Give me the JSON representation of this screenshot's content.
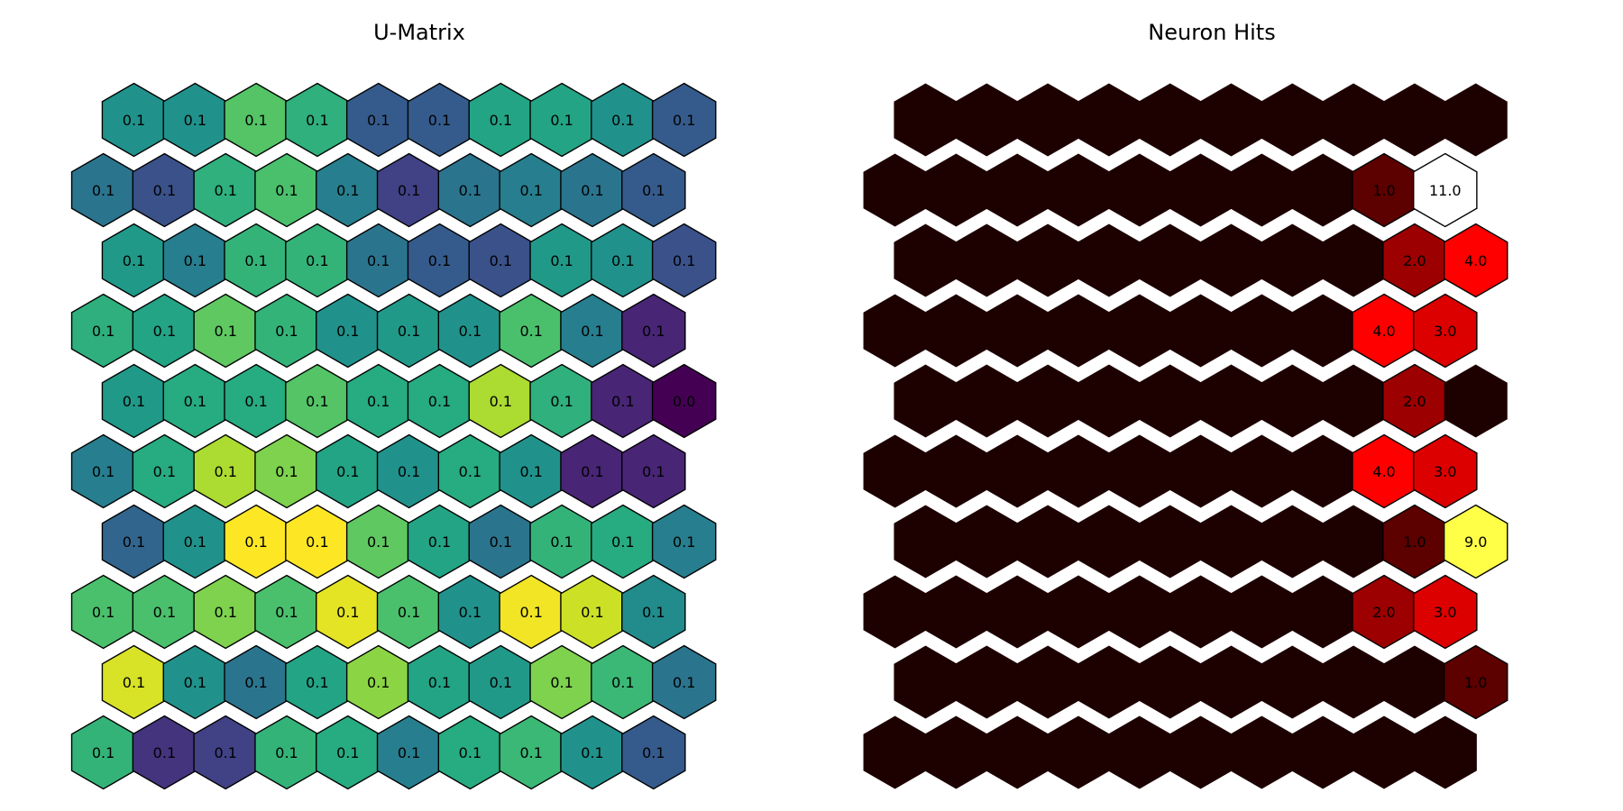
{
  "chart_data": [
    {
      "type": "heatmap",
      "title": "U-Matrix",
      "grid": "hexagonal",
      "rows": 10,
      "cols": 10,
      "colormap": "viridis",
      "values": [
        [
          0.057,
          0.057,
          0.08,
          0.0705,
          0.034,
          0.034,
          0.065,
          0.065,
          0.057,
          0.034
        ],
        [
          0.044,
          0.03,
          0.0705,
          0.078,
          0.048,
          0.024,
          0.044,
          0.048,
          0.044,
          0.034
        ],
        [
          0.06,
          0.048,
          0.072,
          0.072,
          0.044,
          0.034,
          0.03,
          0.06,
          0.057,
          0.03
        ],
        [
          0.07,
          0.065,
          0.082,
          0.072,
          0.057,
          0.06,
          0.057,
          0.078,
          0.048,
          0.015
        ],
        [
          0.06,
          0.068,
          0.068,
          0.08,
          0.068,
          0.068,
          0.095,
          0.0705,
          0.015,
          0.004
        ],
        [
          0.048,
          0.068,
          0.095,
          0.088,
          0.065,
          0.057,
          0.068,
          0.057,
          0.015,
          0.015
        ],
        [
          0.038,
          0.057,
          0.108,
          0.108,
          0.082,
          0.065,
          0.044,
          0.072,
          0.068,
          0.048
        ],
        [
          0.078,
          0.078,
          0.088,
          0.078,
          0.104,
          0.078,
          0.057,
          0.106,
          0.1,
          0.054
        ],
        [
          0.102,
          0.057,
          0.044,
          0.065,
          0.09,
          0.065,
          0.06,
          0.088,
          0.074,
          0.044
        ],
        [
          0.072,
          0.02,
          0.024,
          0.072,
          0.068,
          0.048,
          0.068,
          0.074,
          0.057,
          0.034
        ]
      ],
      "labels": [
        [
          "0.1",
          "0.1",
          "0.1",
          "0.1",
          "0.1",
          "0.1",
          "0.1",
          "0.1",
          "0.1",
          "0.1"
        ],
        [
          "0.1",
          "0.1",
          "0.1",
          "0.1",
          "0.1",
          "0.1",
          "0.1",
          "0.1",
          "0.1",
          "0.1"
        ],
        [
          "0.1",
          "0.1",
          "0.1",
          "0.1",
          "0.1",
          "0.1",
          "0.1",
          "0.1",
          "0.1",
          "0.1"
        ],
        [
          "0.1",
          "0.1",
          "0.1",
          "0.1",
          "0.1",
          "0.1",
          "0.1",
          "0.1",
          "0.1",
          "0.1"
        ],
        [
          "0.1",
          "0.1",
          "0.1",
          "0.1",
          "0.1",
          "0.1",
          "0.1",
          "0.1",
          "0.1",
          "0.0"
        ],
        [
          "0.1",
          "0.1",
          "0.1",
          "0.1",
          "0.1",
          "0.1",
          "0.1",
          "0.1",
          "0.1",
          "0.1"
        ],
        [
          "0.1",
          "0.1",
          "0.1",
          "0.1",
          "0.1",
          "0.1",
          "0.1",
          "0.1",
          "0.1",
          "0.1"
        ],
        [
          "0.1",
          "0.1",
          "0.1",
          "0.1",
          "0.1",
          "0.1",
          "0.1",
          "0.1",
          "0.1",
          "0.1"
        ],
        [
          "0.1",
          "0.1",
          "0.1",
          "0.1",
          "0.1",
          "0.1",
          "0.1",
          "0.1",
          "0.1",
          "0.1"
        ],
        [
          "0.1",
          "0.1",
          "0.1",
          "0.1",
          "0.1",
          "0.1",
          "0.1",
          "0.1",
          "0.1",
          "0.1"
        ]
      ],
      "row_offset": "odd rows shifted right",
      "grid_lines": false
    },
    {
      "type": "heatmap",
      "title": "Neuron Hits",
      "grid": "hexagonal",
      "rows": 10,
      "cols": 10,
      "colormap": "hot",
      "vmax": 11,
      "values": [
        [
          0,
          0,
          0,
          0,
          0,
          0,
          0,
          0,
          0,
          0
        ],
        [
          0,
          0,
          0,
          0,
          0,
          0,
          0,
          0,
          1,
          11
        ],
        [
          0,
          0,
          0,
          0,
          0,
          0,
          0,
          0,
          2,
          4
        ],
        [
          0,
          0,
          0,
          0,
          0,
          0,
          0,
          0,
          4,
          3
        ],
        [
          0,
          0,
          0,
          0,
          0,
          0,
          0,
          0,
          2,
          0
        ],
        [
          0,
          0,
          0,
          0,
          0,
          0,
          0,
          0,
          4,
          3
        ],
        [
          0,
          0,
          0,
          0,
          0,
          0,
          0,
          0,
          1,
          9
        ],
        [
          0,
          0,
          0,
          0,
          0,
          0,
          0,
          0,
          2,
          3
        ],
        [
          0,
          0,
          0,
          0,
          0,
          0,
          0,
          0,
          0,
          1
        ],
        [
          0,
          0,
          0,
          0,
          0,
          0,
          0,
          0,
          0,
          0
        ]
      ],
      "labels": [
        [
          "",
          "",
          "",
          "",
          "",
          "",
          "",
          "",
          "",
          ""
        ],
        [
          "",
          "",
          "",
          "",
          "",
          "",
          "",
          "",
          "1.0",
          "11.0"
        ],
        [
          "",
          "",
          "",
          "",
          "",
          "",
          "",
          "",
          "2.0",
          "4.0"
        ],
        [
          "",
          "",
          "",
          "",
          "",
          "",
          "",
          "",
          "4.0",
          "3.0"
        ],
        [
          "",
          "",
          "",
          "",
          "",
          "",
          "",
          "",
          "2.0",
          ""
        ],
        [
          "",
          "",
          "",
          "",
          "",
          "",
          "",
          "",
          "4.0",
          "3.0"
        ],
        [
          "",
          "",
          "",
          "",
          "",
          "",
          "",
          "",
          "1.0",
          "9.0"
        ],
        [
          "",
          "",
          "",
          "",
          "",
          "",
          "",
          "",
          "2.0",
          "3.0"
        ],
        [
          "",
          "",
          "",
          "",
          "",
          "",
          "",
          "",
          "",
          "1.0"
        ],
        [
          "",
          "",
          "",
          "",
          "",
          "",
          "",
          "",
          "",
          ""
        ]
      ],
      "row_offset": "odd rows shifted right",
      "grid_lines": false
    }
  ]
}
